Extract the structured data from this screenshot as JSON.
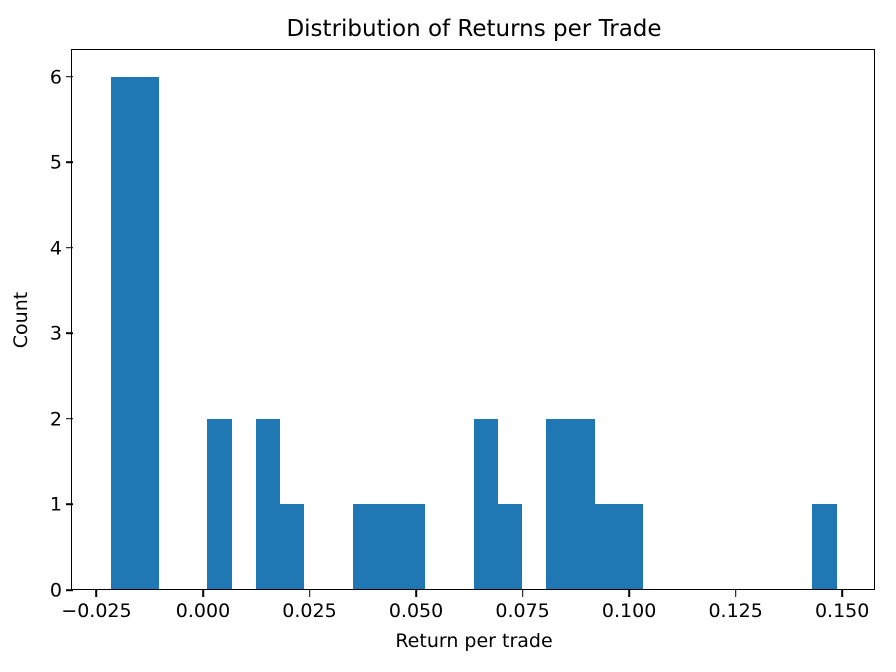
{
  "chart_data": {
    "type": "bar",
    "subtype": "histogram",
    "title": "Distribution of Returns per Trade",
    "xlabel": "Return per trade",
    "ylabel": "Count",
    "bar_color": "#1f77b4",
    "axis_color": "#000000",
    "background_color": "#ffffff",
    "grid": false,
    "legend": "none",
    "histogram": {
      "n_bins": 30,
      "bin_start": -0.0217,
      "bin_width": 0.00568,
      "counts": [
        6,
        6,
        0,
        0,
        2,
        0,
        2,
        1,
        0,
        0,
        1,
        1,
        1,
        0,
        0,
        2,
        1,
        0,
        2,
        2,
        1,
        1,
        0,
        0,
        0,
        0,
        0,
        0,
        0,
        1
      ],
      "total_count": 30
    },
    "xlim": [
      -0.0305,
      0.1577
    ],
    "ylim": [
      0,
      6.3
    ],
    "x_ticks": [
      -0.025,
      0.0,
      0.025,
      0.05,
      0.075,
      0.1,
      0.125,
      0.15
    ],
    "x_tick_labels": [
      "−0.025",
      "0.000",
      "0.025",
      "0.050",
      "0.075",
      "0.100",
      "0.125",
      "0.150"
    ],
    "y_ticks": [
      0,
      1,
      2,
      3,
      4,
      5,
      6
    ],
    "y_tick_labels": [
      "0",
      "1",
      "2",
      "3",
      "4",
      "5",
      "6"
    ]
  }
}
